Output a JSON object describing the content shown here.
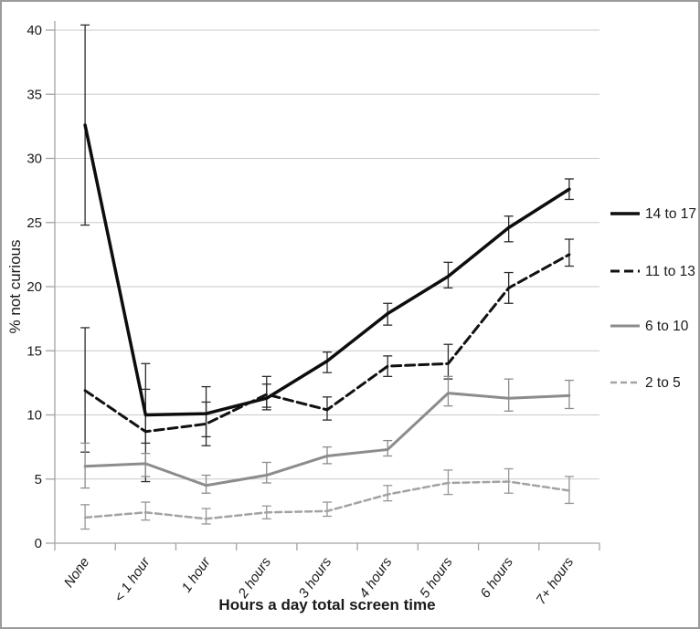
{
  "figure": {
    "background": "#ffffff",
    "border_color": "#9b9b9b",
    "gridline_color": "#c9c9c9",
    "axis_color": "#a3a3a3",
    "text_color": "#1a1a1a"
  },
  "chart_data": {
    "type": "line",
    "title": "",
    "xlabel": "Hours a day total screen time",
    "ylabel": "% not curious",
    "categories": [
      "None",
      "< 1 hour",
      "1 hour",
      "2 hours",
      "3 hours",
      "4 hours",
      "5 hours",
      "6 hours",
      "7+ hours"
    ],
    "ylim": [
      0,
      40
    ],
    "yticks": [
      0,
      5,
      10,
      15,
      20,
      25,
      30,
      35,
      40
    ],
    "grid": true,
    "error_bars": true,
    "legend_position": "right",
    "series": [
      {
        "name": "14 to 17",
        "color": "#0d0d0d",
        "error_color": "#2b2b2b",
        "line_style": "solid",
        "dash": "",
        "width": 3.5,
        "values": [
          32.6,
          10.0,
          10.1,
          11.3,
          14.2,
          17.9,
          20.8,
          24.6,
          27.6
        ],
        "error_low": [
          24.8,
          7.8,
          8.3,
          10.4,
          13.3,
          17.0,
          19.9,
          23.5,
          26.8
        ],
        "error_high": [
          40.4,
          12.0,
          12.2,
          12.4,
          14.9,
          18.7,
          21.9,
          25.5,
          28.4
        ]
      },
      {
        "name": "11 to 13",
        "color": "#111111",
        "error_color": "#2b2b2b",
        "line_style": "dashed",
        "dash": "10,5",
        "width": 3,
        "values": [
          11.9,
          8.7,
          9.3,
          11.6,
          10.4,
          13.8,
          14.0,
          19.9,
          22.5
        ],
        "error_low": [
          7.1,
          4.8,
          7.6,
          10.6,
          9.6,
          13.0,
          12.8,
          18.7,
          21.6
        ],
        "error_high": [
          16.8,
          14.0,
          11.0,
          13.0,
          11.4,
          14.6,
          15.5,
          21.1,
          23.7
        ]
      },
      {
        "name": "6 to 10",
        "color": "#8c8c8c",
        "error_color": "#8c8c8c",
        "line_style": "solid",
        "dash": "",
        "width": 3,
        "values": [
          6.0,
          6.2,
          4.5,
          5.3,
          6.8,
          7.3,
          11.7,
          11.3,
          11.5
        ],
        "error_low": [
          4.3,
          5.2,
          3.9,
          4.7,
          6.2,
          6.8,
          10.7,
          10.3,
          10.5
        ],
        "error_high": [
          7.8,
          7.0,
          5.3,
          6.3,
          7.5,
          8.0,
          13.0,
          12.8,
          12.7
        ]
      },
      {
        "name": "2 to 5",
        "color": "#a3a3a3",
        "error_color": "#969696",
        "line_style": "dashed",
        "dash": "7,4",
        "width": 2.5,
        "values": [
          2.0,
          2.4,
          1.9,
          2.4,
          2.5,
          3.8,
          4.7,
          4.8,
          4.1
        ],
        "error_low": [
          1.1,
          1.8,
          1.5,
          1.9,
          2.1,
          3.3,
          3.8,
          3.9,
          3.1
        ],
        "error_high": [
          3.0,
          3.2,
          2.7,
          2.9,
          3.2,
          4.5,
          5.7,
          5.8,
          5.2
        ]
      }
    ]
  }
}
